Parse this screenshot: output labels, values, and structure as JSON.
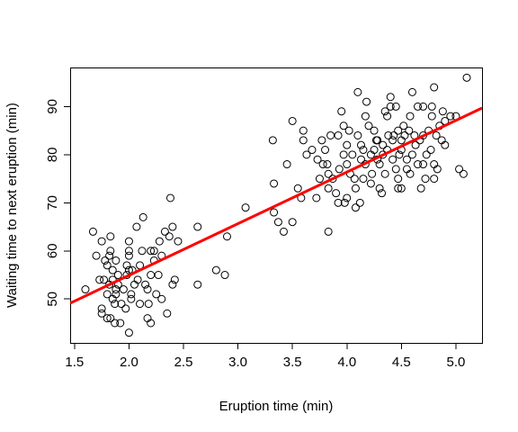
{
  "chart_data": {
    "type": "scatter",
    "title": "",
    "xlabel": "Eruption time (min)",
    "ylabel": "Waiting time to next eruption (min)",
    "xlim": [
      1.6,
      5.1
    ],
    "ylim": [
      43,
      96
    ],
    "x_ticks": [
      1.5,
      2.0,
      2.5,
      3.0,
      3.5,
      4.0,
      4.5,
      5.0
    ],
    "x_tick_labels": [
      "1.5",
      "2.0",
      "2.5",
      "3.0",
      "3.5",
      "4.0",
      "4.5",
      "5.0"
    ],
    "y_ticks": [
      50,
      60,
      70,
      80,
      90
    ],
    "y_tick_labels": [
      "50",
      "60",
      "70",
      "80",
      "90"
    ],
    "grid": false,
    "fit_line": {
      "color": "#ff0000",
      "intercept": 33.47,
      "slope": 10.73
    },
    "series": [
      {
        "marker": "open-circle",
        "color": "#000000",
        "points": [
          [
            1.6,
            52
          ],
          [
            1.67,
            64
          ],
          [
            1.7,
            59
          ],
          [
            1.73,
            54
          ],
          [
            1.75,
            62
          ],
          [
            1.75,
            48
          ],
          [
            1.75,
            47
          ],
          [
            1.77,
            54
          ],
          [
            1.78,
            58
          ],
          [
            1.8,
            46
          ],
          [
            1.8,
            51
          ],
          [
            1.8,
            57
          ],
          [
            1.82,
            53
          ],
          [
            1.82,
            59
          ],
          [
            1.83,
            60
          ],
          [
            1.83,
            63
          ],
          [
            1.83,
            46
          ],
          [
            1.85,
            50
          ],
          [
            1.85,
            54
          ],
          [
            1.85,
            56
          ],
          [
            1.87,
            45
          ],
          [
            1.87,
            49
          ],
          [
            1.88,
            51
          ],
          [
            1.88,
            52
          ],
          [
            1.88,
            58
          ],
          [
            1.9,
            53
          ],
          [
            1.9,
            55
          ],
          [
            1.92,
            45
          ],
          [
            1.93,
            49
          ],
          [
            1.95,
            52
          ],
          [
            1.97,
            48
          ],
          [
            1.98,
            55
          ],
          [
            1.98,
            57
          ],
          [
            2.0,
            59
          ],
          [
            2.0,
            60
          ],
          [
            2.0,
            62
          ],
          [
            2.0,
            43
          ],
          [
            2.0,
            56
          ],
          [
            2.02,
            50
          ],
          [
            2.02,
            51
          ],
          [
            2.03,
            56
          ],
          [
            2.05,
            53
          ],
          [
            2.07,
            65
          ],
          [
            2.08,
            54
          ],
          [
            2.1,
            49
          ],
          [
            2.1,
            57
          ],
          [
            2.12,
            60
          ],
          [
            2.13,
            67
          ],
          [
            2.15,
            53
          ],
          [
            2.17,
            52
          ],
          [
            2.17,
            46
          ],
          [
            2.18,
            49
          ],
          [
            2.2,
            55
          ],
          [
            2.2,
            60
          ],
          [
            2.2,
            45
          ],
          [
            2.23,
            58
          ],
          [
            2.23,
            60
          ],
          [
            2.25,
            51
          ],
          [
            2.27,
            55
          ],
          [
            2.28,
            62
          ],
          [
            2.3,
            59
          ],
          [
            2.3,
            50
          ],
          [
            2.33,
            64
          ],
          [
            2.35,
            47
          ],
          [
            2.37,
            63
          ],
          [
            2.38,
            71
          ],
          [
            2.4,
            53
          ],
          [
            2.4,
            65
          ],
          [
            2.42,
            54
          ],
          [
            2.45,
            62
          ],
          [
            2.63,
            53
          ],
          [
            2.63,
            65
          ],
          [
            2.8,
            56
          ],
          [
            2.88,
            55
          ],
          [
            2.9,
            63
          ],
          [
            3.07,
            69
          ],
          [
            3.32,
            83
          ],
          [
            3.33,
            74
          ],
          [
            3.33,
            68
          ],
          [
            3.37,
            66
          ],
          [
            3.42,
            64
          ],
          [
            3.45,
            78
          ],
          [
            3.5,
            87
          ],
          [
            3.5,
            66
          ],
          [
            3.55,
            73
          ],
          [
            3.58,
            71
          ],
          [
            3.6,
            83
          ],
          [
            3.6,
            85
          ],
          [
            3.63,
            80
          ],
          [
            3.68,
            81
          ],
          [
            3.72,
            71
          ],
          [
            3.73,
            79
          ],
          [
            3.75,
            75
          ],
          [
            3.77,
            83
          ],
          [
            3.78,
            78
          ],
          [
            3.8,
            81
          ],
          [
            3.82,
            78
          ],
          [
            3.83,
            73
          ],
          [
            3.83,
            64
          ],
          [
            3.83,
            76
          ],
          [
            3.85,
            84
          ],
          [
            3.87,
            75
          ],
          [
            3.9,
            72
          ],
          [
            3.92,
            70
          ],
          [
            3.92,
            84
          ],
          [
            3.93,
            77
          ],
          [
            3.95,
            89
          ],
          [
            3.97,
            80
          ],
          [
            3.97,
            86
          ],
          [
            3.98,
            70
          ],
          [
            4.0,
            71
          ],
          [
            4.0,
            82
          ],
          [
            4.0,
            78
          ],
          [
            4.02,
            85
          ],
          [
            4.03,
            76
          ],
          [
            4.05,
            80
          ],
          [
            4.07,
            75
          ],
          [
            4.08,
            69
          ],
          [
            4.08,
            73
          ],
          [
            4.1,
            84
          ],
          [
            4.1,
            93
          ],
          [
            4.12,
            70
          ],
          [
            4.13,
            79
          ],
          [
            4.13,
            82
          ],
          [
            4.15,
            75
          ],
          [
            4.15,
            81
          ],
          [
            4.17,
            88
          ],
          [
            4.17,
            78
          ],
          [
            4.18,
            91
          ],
          [
            4.2,
            86
          ],
          [
            4.22,
            74
          ],
          [
            4.22,
            80
          ],
          [
            4.23,
            76
          ],
          [
            4.25,
            85
          ],
          [
            4.25,
            81
          ],
          [
            4.27,
            83
          ],
          [
            4.28,
            83
          ],
          [
            4.28,
            79
          ],
          [
            4.3,
            73
          ],
          [
            4.3,
            78
          ],
          [
            4.32,
            72
          ],
          [
            4.33,
            82
          ],
          [
            4.33,
            80
          ],
          [
            4.35,
            89
          ],
          [
            4.35,
            76
          ],
          [
            4.37,
            88
          ],
          [
            4.37,
            81
          ],
          [
            4.38,
            84
          ],
          [
            4.4,
            92
          ],
          [
            4.4,
            90
          ],
          [
            4.42,
            83
          ],
          [
            4.42,
            79
          ],
          [
            4.43,
            84
          ],
          [
            4.45,
            77
          ],
          [
            4.45,
            90
          ],
          [
            4.47,
            75
          ],
          [
            4.47,
            85
          ],
          [
            4.47,
            73
          ],
          [
            4.48,
            80
          ],
          [
            4.5,
            83
          ],
          [
            4.5,
            81
          ],
          [
            4.5,
            73
          ],
          [
            4.52,
            86
          ],
          [
            4.53,
            84
          ],
          [
            4.55,
            77
          ],
          [
            4.55,
            79
          ],
          [
            4.57,
            85
          ],
          [
            4.58,
            88
          ],
          [
            4.58,
            76
          ],
          [
            4.6,
            93
          ],
          [
            4.6,
            80
          ],
          [
            4.62,
            84
          ],
          [
            4.63,
            82
          ],
          [
            4.65,
            90
          ],
          [
            4.65,
            78
          ],
          [
            4.67,
            83
          ],
          [
            4.68,
            73
          ],
          [
            4.7,
            78
          ],
          [
            4.7,
            84
          ],
          [
            4.7,
            90
          ],
          [
            4.72,
            75
          ],
          [
            4.73,
            80
          ],
          [
            4.75,
            85
          ],
          [
            4.77,
            81
          ],
          [
            4.78,
            88
          ],
          [
            4.78,
            90
          ],
          [
            4.8,
            94
          ],
          [
            4.8,
            78
          ],
          [
            4.8,
            75
          ],
          [
            4.82,
            84
          ],
          [
            4.83,
            77
          ],
          [
            4.85,
            86
          ],
          [
            4.87,
            83
          ],
          [
            4.88,
            89
          ],
          [
            4.9,
            82
          ],
          [
            4.9,
            87
          ],
          [
            4.95,
            88
          ],
          [
            5.0,
            88
          ],
          [
            5.03,
            77
          ],
          [
            5.07,
            76
          ],
          [
            5.1,
            96
          ]
        ]
      }
    ]
  }
}
